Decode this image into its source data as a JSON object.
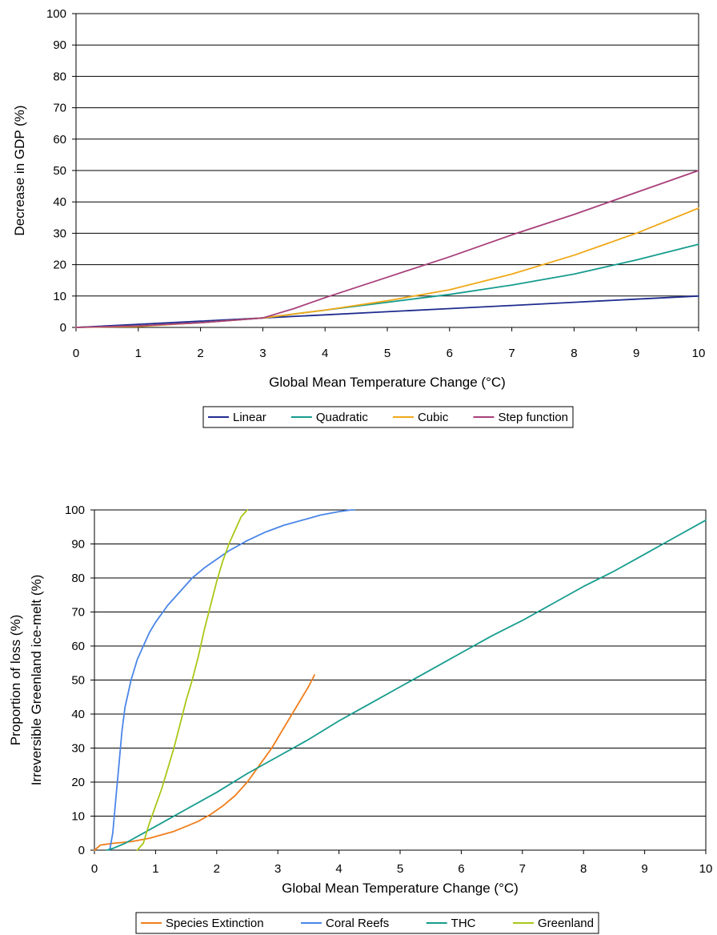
{
  "chart_data": [
    {
      "type": "line",
      "xlabel": "Global Mean Temperature Change (°C)",
      "ylabel": "Decrease in GDP (%)",
      "xlim": [
        0,
        10
      ],
      "ylim": [
        0,
        100
      ],
      "x_ticks": [
        "0",
        "1",
        "2",
        "3",
        "4",
        "5",
        "6",
        "7",
        "8",
        "9",
        "10"
      ],
      "y_ticks": [
        "0",
        "10",
        "20",
        "30",
        "40",
        "50",
        "60",
        "70",
        "80",
        "90",
        "100"
      ],
      "grid": "horizontal",
      "legend": "bottom",
      "series": [
        {
          "name": "Linear",
          "color": "#1f2c8f",
          "x": [
            0,
            1,
            2,
            3,
            4,
            5,
            6,
            7,
            8,
            9,
            10
          ],
          "y": [
            0,
            1,
            2,
            3,
            4,
            5,
            6,
            7,
            8,
            9,
            10
          ]
        },
        {
          "name": "Quadratic",
          "color": "#169c8e",
          "x": [
            0,
            1,
            2,
            3,
            4,
            5,
            6,
            7,
            8,
            9,
            10
          ],
          "y": [
            0,
            0.5,
            1.5,
            3,
            5.5,
            8,
            10.5,
            13.5,
            17,
            21.5,
            26.5
          ]
        },
        {
          "name": "Cubic",
          "color": "#f0a818",
          "x": [
            0,
            1,
            2,
            3,
            4,
            5,
            6,
            7,
            8,
            9,
            10
          ],
          "y": [
            0,
            0.3,
            1.5,
            3,
            5.5,
            8.5,
            12,
            17,
            23,
            30,
            38
          ]
        },
        {
          "name": "Step function",
          "color": "#a8407a",
          "x": [
            0,
            1,
            2,
            3,
            3.5,
            4,
            5,
            6,
            7,
            8,
            9,
            10
          ],
          "y": [
            0,
            0.5,
            1.5,
            3,
            6,
            9.5,
            16,
            22.5,
            29.5,
            36,
            43,
            50
          ]
        }
      ]
    },
    {
      "type": "line",
      "xlabel": "Global Mean Temperature Change (°C)",
      "ylabel": "Proportion of loss (%)",
      "ylabel2": "Irreversible Greenland ice-melt (%)",
      "xlim": [
        0,
        10
      ],
      "ylim": [
        0,
        100
      ],
      "x_ticks": [
        "0",
        "1",
        "2",
        "3",
        "4",
        "5",
        "6",
        "7",
        "8",
        "9",
        "10"
      ],
      "y_ticks": [
        "0",
        "10",
        "20",
        "30",
        "40",
        "50",
        "60",
        "70",
        "80",
        "90",
        "100"
      ],
      "grid": "horizontal",
      "legend": "bottom",
      "series": [
        {
          "name": "Species Extinction",
          "color": "#f07e1c",
          "x": [
            0,
            0.1,
            0.3,
            0.6,
            0.9,
            1.1,
            1.3,
            1.5,
            1.7,
            1.9,
            2.1,
            2.3,
            2.5,
            2.7,
            2.9,
            3.1,
            3.3,
            3.5,
            3.6
          ],
          "y": [
            0,
            1.5,
            2,
            2.5,
            3.5,
            4.5,
            5.5,
            7,
            8.5,
            10.5,
            13,
            16,
            20,
            25,
            30,
            36,
            42,
            48,
            51.5
          ]
        },
        {
          "name": "Coral Reefs",
          "color": "#4a86e8",
          "x": [
            0.25,
            0.3,
            0.35,
            0.4,
            0.45,
            0.5,
            0.6,
            0.7,
            0.8,
            0.9,
            1.0,
            1.2,
            1.4,
            1.6,
            1.8,
            2.0,
            2.2,
            2.5,
            2.8,
            3.1,
            3.4,
            3.7,
            4.0,
            4.2,
            4.25
          ],
          "y": [
            0,
            5,
            15,
            25,
            35,
            42,
            50,
            56,
            60,
            64,
            67,
            72,
            76,
            80,
            83,
            85.5,
            88,
            91,
            93.5,
            95.5,
            97,
            98.5,
            99.5,
            100,
            100
          ]
        },
        {
          "name": "THC",
          "color": "#169c8e",
          "x": [
            0.2,
            0.3,
            0.5,
            0.8,
            1.0,
            1.5,
            2.0,
            2.5,
            3.0,
            3.5,
            4.0,
            4.5,
            5.0,
            5.5,
            6.0,
            6.5,
            7.0,
            7.5,
            8.0,
            8.5,
            9.0,
            9.5,
            10.0
          ],
          "y": [
            0,
            0.5,
            2,
            5,
            7,
            12,
            17,
            22.5,
            27.5,
            32.5,
            38,
            43,
            48,
            53,
            58,
            63,
            67.5,
            72.5,
            77.5,
            82,
            87,
            92,
            97
          ]
        },
        {
          "name": "Greenland",
          "color": "#a8c818",
          "x": [
            0.7,
            0.8,
            0.85,
            0.9,
            1.0,
            1.1,
            1.2,
            1.3,
            1.4,
            1.5,
            1.6,
            1.7,
            1.8,
            1.9,
            2.0,
            2.1,
            2.2,
            2.3,
            2.4,
            2.5
          ],
          "y": [
            0,
            2,
            5,
            8,
            13,
            18,
            24,
            30,
            37,
            44,
            50,
            57,
            65,
            72,
            79,
            85,
            90,
            94,
            98,
            100
          ]
        }
      ]
    }
  ]
}
